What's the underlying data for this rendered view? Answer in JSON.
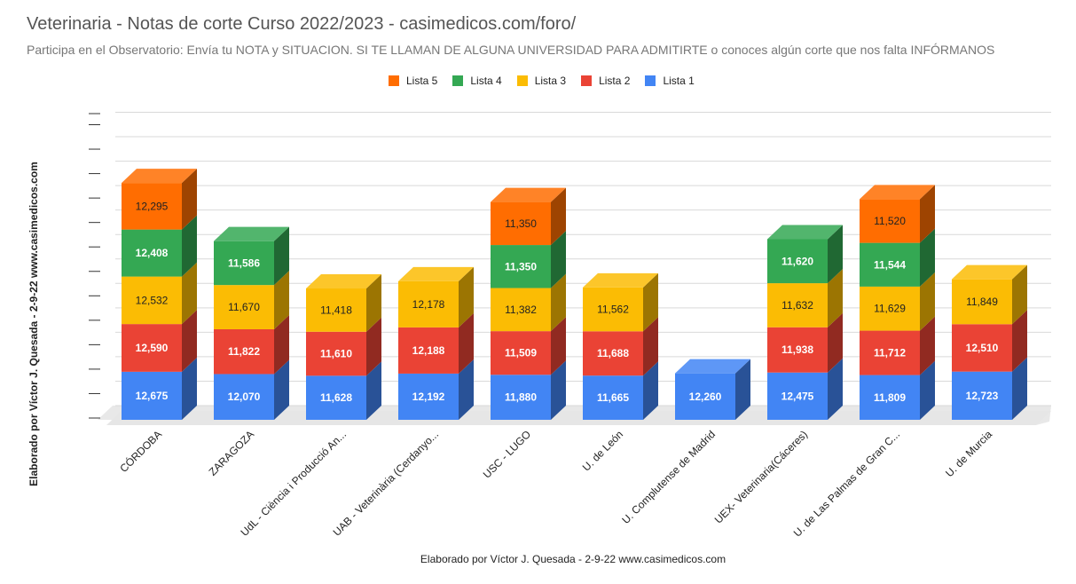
{
  "header": {
    "title": "Veterinaria - Notas de corte Curso 2022/2023 - casimedicos.com/foro/",
    "subtitle": "Participa en el Observatorio: Envía tu NOTA y SITUACION. SI TE LLAMAN DE ALGUNA UNIVERSIDAD PARA ADMITIRTE o conoces algún corte que nos falta INFÓRMANOS"
  },
  "chart_data": {
    "type": "bar",
    "stacked": true,
    "three_d": true,
    "title": "Veterinaria - Notas de corte Curso 2022/2023 - casimedicos.com/foro/",
    "subtitle": "Participa en el Observatorio: Envía tu NOTA y SITUACION. SI TE LLAMAN DE ALGUNA UNIVERSIDAD PARA ADMITIRTE o conoces algún corte que nos falta INFÓRMANOS",
    "xlabel": "Elaborado por Víctor J. Quesada - 2-9-22  www.casimedicos.com",
    "ylabel": "Elaborado por Víctor J. Quesada - 2-9-22  www.casimedicos.com",
    "grid": true,
    "legend_position": "top",
    "ylim": [
      0,
      75
    ],
    "categories": [
      "CÓRDOBA",
      "ZARAGOZA",
      "UdL - Ciència i Producció An...",
      "UAB - Veterinària (Cerdanyo...",
      "USC - LUGO",
      "U. de León",
      "U. Complutense de Madrid",
      "UEX- Veterinaria(Cáceres)",
      "U. de Las Palmas de Gran C...",
      "U. de Murcia"
    ],
    "series": [
      {
        "name": "Lista 1",
        "color": "#4285f4",
        "values": [
          12.675,
          12.07,
          11.628,
          12.192,
          11.88,
          11.665,
          12.26,
          12.475,
          11.809,
          12.723
        ],
        "labels": [
          "12,675",
          "12,070",
          "11,628",
          "12,192",
          "11,880",
          "11,665",
          "12,260",
          "12,475",
          "11,809",
          "12,723"
        ]
      },
      {
        "name": "Lista 2",
        "color": "#ea4335",
        "values": [
          12.59,
          11.822,
          11.61,
          12.188,
          11.509,
          11.688,
          null,
          11.938,
          11.712,
          12.51
        ],
        "labels": [
          "12,590",
          "11,822",
          "11,610",
          "12,188",
          "11,509",
          "11,688",
          "",
          "11,938",
          "11,712",
          "12,510"
        ]
      },
      {
        "name": "Lista 3",
        "color": "#fbbc04",
        "values": [
          12.532,
          11.67,
          11.418,
          12.178,
          11.382,
          11.562,
          null,
          11.632,
          11.629,
          11.849
        ],
        "labels": [
          "12,532",
          "11,670",
          "11,418",
          "12,178",
          "11,382",
          "11,562",
          "",
          "11,632",
          "11,629",
          "11,849"
        ]
      },
      {
        "name": "Lista 4",
        "color": "#34a853",
        "values": [
          12.408,
          11.586,
          null,
          null,
          11.35,
          null,
          null,
          11.62,
          11.544,
          null
        ],
        "labels": [
          "12,408",
          "11,586",
          "",
          "",
          "11,350",
          "",
          "",
          "11,620",
          "11,544",
          ""
        ]
      },
      {
        "name": "Lista 5",
        "color": "#ff6d01",
        "values": [
          12.295,
          null,
          null,
          null,
          11.35,
          null,
          null,
          null,
          11.52,
          null
        ],
        "labels": [
          "12,295",
          "",
          "",
          "",
          "11,350",
          "",
          "",
          "",
          "11,520",
          ""
        ]
      }
    ],
    "legend_order": [
      "Lista 5",
      "Lista 4",
      "Lista 3",
      "Lista 2",
      "Lista 1"
    ]
  }
}
